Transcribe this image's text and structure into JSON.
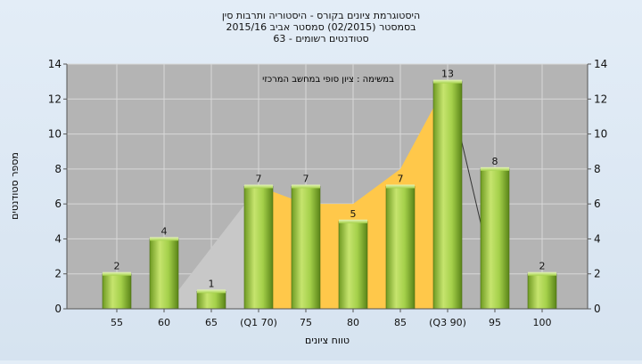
{
  "chart_data": {
    "type": "bar",
    "title_lines": [
      "היסטוגרמת ציונים בקורס - היסטוריה ותרבות סין",
      "בסמסטר  (02/2015)  סמסטר אביב 2015/16",
      "סטודנטים רשומים - 63"
    ],
    "annotation": "במשימה : ציון סופי במחשב המרכזי",
    "xlabel": "טווח ציונים",
    "ylabel": "מספר סטודנטים",
    "ylim": [
      0,
      14
    ],
    "yticks": [
      0,
      2,
      4,
      6,
      8,
      10,
      12,
      14
    ],
    "categories": [
      "55",
      "60",
      "65",
      "(Q1 70)",
      "75",
      "80",
      "85",
      "(Q3 90)",
      "95",
      "100"
    ],
    "values": [
      2,
      4,
      1,
      7,
      7,
      5,
      7,
      13,
      8,
      2
    ],
    "data_labels": [
      "2",
      "4",
      "1",
      "7",
      "7",
      "5",
      "7",
      "13",
      "8",
      "2"
    ],
    "area_series": [
      0,
      0,
      1,
      7,
      6,
      6,
      8,
      13,
      4,
      0
    ],
    "grid": true,
    "colors": {
      "bar": "#9ccc3c",
      "bar_dark": "#5f8a1e",
      "area": "#ffc84a",
      "area_light": "#c8c8c8",
      "plot_bg": "#b4b4b4"
    }
  }
}
